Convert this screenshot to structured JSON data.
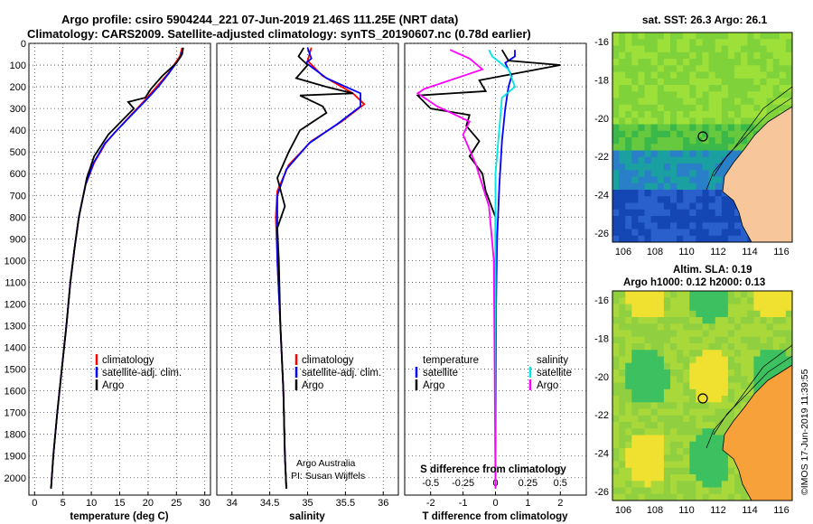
{
  "header": {
    "line1": "Argo profile: csiro 5904244_221 07-Jun-2019 21.46S 111.25E (NRT data)",
    "line2": "Climatology: CARS2009. Satellite-adjusted climatology: synTS_20190607.nc (0.78d earlier)"
  },
  "depth_ticks": [
    0,
    100,
    200,
    300,
    400,
    500,
    600,
    700,
    800,
    900,
    1000,
    1100,
    1200,
    1300,
    1400,
    1500,
    1600,
    1700,
    1800,
    1900,
    2000
  ],
  "panels": {
    "temperature": {
      "xlabel": "temperature (deg C)",
      "xticks": [
        0,
        5,
        10,
        15,
        20,
        25,
        30
      ],
      "legend": [
        "climatology",
        "satellite-adj. clim.",
        "Argo"
      ]
    },
    "salinity": {
      "xlabel": "salinity",
      "xticks": [
        "34",
        "34.5",
        "35",
        "35.5",
        "36"
      ],
      "legend": [
        "climatology",
        "satellite-adj. clim.",
        "Argo"
      ],
      "credit1": "Argo Australia",
      "credit2": "PI: Susan Wijffels"
    },
    "difference": {
      "xlabel": "T difference from climatology",
      "xticks": [
        "-2",
        "-1",
        "0",
        "1",
        "2"
      ],
      "top_label": "S difference from climatology",
      "sticks": [
        "-0.5",
        "-0.25",
        "0",
        "0.25",
        "0.5"
      ],
      "legend_left_title": "temperature",
      "legend_right_title": "salinity",
      "legend_left": [
        "satellite",
        "Argo"
      ],
      "legend_right": [
        "satellite",
        "Argo"
      ]
    }
  },
  "maps": {
    "sst": {
      "title": "sat. SST: 26.3 Argo: 26.1",
      "yticks": [
        "-16",
        "-18",
        "-20",
        "-22",
        "-24",
        "-26"
      ],
      "xticks": [
        "106",
        "108",
        "110",
        "112",
        "114",
        "116"
      ]
    },
    "sla": {
      "title1": "Altim. SLA: 0.19",
      "title2": "Argo h1000: 0.12 h2000: 0.13",
      "yticks": [
        "-16",
        "-18",
        "-20",
        "-22",
        "-24",
        "-26"
      ],
      "xticks": [
        "106",
        "108",
        "110",
        "112",
        "114",
        "116"
      ]
    },
    "footer": "©IMOS 17-Jun-2019 11:39:55"
  },
  "colors": {
    "climatology": "#ff0000",
    "satellite": "#0000ff",
    "argo": "#000000",
    "sat_salinity": "#00e5e5",
    "argo_salinity": "#ff00ff",
    "land": "#f7c79b"
  },
  "chart_data": [
    {
      "type": "line",
      "name": "temperature profile",
      "xlabel": "temperature (deg C)",
      "ylabel": "",
      "xlim": [
        -1,
        31
      ],
      "ylim": [
        2080,
        0
      ],
      "series": [
        {
          "name": "climatology",
          "points": [
            [
              26,
              20
            ],
            [
              25.6,
              60
            ],
            [
              24.8,
              90
            ],
            [
              23.5,
              140
            ],
            [
              21.5,
              200
            ],
            [
              19.5,
              260
            ],
            [
              17,
              330
            ],
            [
              14.5,
              400
            ],
            [
              12.5,
              460
            ],
            [
              10.5,
              550
            ],
            [
              9,
              650
            ],
            [
              7.8,
              800
            ],
            [
              7,
              950
            ],
            [
              6.3,
              1100
            ],
            [
              5.6,
              1300
            ],
            [
              4.8,
              1500
            ],
            [
              4,
              1700
            ],
            [
              3.3,
              1900
            ],
            [
              2.9,
              2050
            ]
          ]
        },
        {
          "name": "satellite-adj. clim.",
          "points": [
            [
              26.2,
              20
            ],
            [
              25.8,
              60
            ],
            [
              25,
              90
            ],
            [
              23.6,
              140
            ],
            [
              21.8,
              200
            ],
            [
              19.7,
              260
            ],
            [
              17.1,
              330
            ],
            [
              14.5,
              400
            ],
            [
              12.4,
              460
            ],
            [
              10.4,
              550
            ],
            [
              9,
              650
            ],
            [
              7.8,
              800
            ],
            [
              7,
              950
            ],
            [
              6.3,
              1100
            ],
            [
              5.6,
              1300
            ],
            [
              4.8,
              1500
            ],
            [
              4,
              1700
            ],
            [
              3.3,
              1900
            ],
            [
              2.9,
              2050
            ]
          ]
        },
        {
          "name": "Argo",
          "points": [
            [
              26.2,
              20
            ],
            [
              26,
              50
            ],
            [
              25,
              90
            ],
            [
              22.5,
              150
            ],
            [
              20.5,
              210
            ],
            [
              19.5,
              250
            ],
            [
              16.5,
              270
            ],
            [
              17.5,
              300
            ],
            [
              13,
              420
            ],
            [
              10.5,
              520
            ],
            [
              9.2,
              620
            ],
            [
              7.8,
              800
            ],
            [
              7,
              950
            ],
            [
              6.3,
              1100
            ],
            [
              5.6,
              1300
            ],
            [
              4.8,
              1500
            ],
            [
              4,
              1700
            ],
            [
              3.3,
              1900
            ],
            [
              2.9,
              2050
            ]
          ]
        }
      ]
    },
    {
      "type": "line",
      "name": "salinity profile",
      "xlabel": "salinity",
      "ylabel": "",
      "xlim": [
        33.8,
        36.2
      ],
      "ylim": [
        2080,
        0
      ],
      "series": [
        {
          "name": "climatology",
          "points": [
            [
              35.05,
              20
            ],
            [
              35.0,
              80
            ],
            [
              35.2,
              150
            ],
            [
              35.6,
              230
            ],
            [
              35.75,
              280
            ],
            [
              35.45,
              360
            ],
            [
              35.05,
              450
            ],
            [
              34.75,
              560
            ],
            [
              34.6,
              680
            ],
            [
              34.58,
              800
            ],
            [
              34.6,
              1000
            ],
            [
              34.64,
              1300
            ],
            [
              34.68,
              1600
            ],
            [
              34.7,
              1900
            ],
            [
              34.72,
              2050
            ]
          ]
        },
        {
          "name": "satellite-adj. clim.",
          "points": [
            [
              35.0,
              20
            ],
            [
              35.05,
              70
            ],
            [
              34.98,
              90
            ],
            [
              35.25,
              160
            ],
            [
              35.7,
              230
            ],
            [
              35.7,
              290
            ],
            [
              35.4,
              370
            ],
            [
              35.02,
              460
            ],
            [
              34.72,
              580
            ],
            [
              34.6,
              700
            ],
            [
              34.6,
              800
            ],
            [
              34.6,
              1000
            ],
            [
              34.64,
              1300
            ],
            [
              34.68,
              1600
            ],
            [
              34.7,
              1900
            ],
            [
              34.72,
              2050
            ]
          ]
        },
        {
          "name": "Argo",
          "points": [
            [
              34.95,
              20
            ],
            [
              34.88,
              60
            ],
            [
              35.0,
              100
            ],
            [
              34.85,
              160
            ],
            [
              35.25,
              200
            ],
            [
              35.6,
              230
            ],
            [
              34.9,
              240
            ],
            [
              35.2,
              290
            ],
            [
              35.25,
              320
            ],
            [
              34.9,
              400
            ],
            [
              34.75,
              500
            ],
            [
              34.6,
              620
            ],
            [
              34.7,
              750
            ],
            [
              34.6,
              850
            ],
            [
              34.62,
              1000
            ],
            [
              34.64,
              1300
            ],
            [
              34.68,
              1600
            ],
            [
              34.7,
              1900
            ],
            [
              34.72,
              2050
            ]
          ]
        }
      ]
    },
    {
      "type": "line",
      "name": "difference from climatology",
      "xlabel": "T difference from climatology",
      "ylabel": "",
      "xlim": [
        -2.8,
        2.8
      ],
      "ylim": [
        2080,
        0
      ],
      "series": [
        {
          "name": "temperature satellite",
          "points": [
            [
              0.6,
              30
            ],
            [
              0.6,
              60
            ],
            [
              0.3,
              90
            ],
            [
              0.5,
              150
            ],
            [
              0.4,
              200
            ],
            [
              0.3,
              300
            ],
            [
              0.2,
              450
            ],
            [
              0.12,
              650
            ],
            [
              0.05,
              900
            ],
            [
              0.02,
              1200
            ],
            [
              0.01,
              1600
            ],
            [
              0,
              2050
            ]
          ]
        },
        {
          "name": "temperature Argo",
          "points": [
            [
              0.2,
              30
            ],
            [
              0.4,
              80
            ],
            [
              2.0,
              100
            ],
            [
              -0.5,
              170
            ],
            [
              -0.3,
              220
            ],
            [
              -2.4,
              240
            ],
            [
              -2.0,
              300
            ],
            [
              -0.8,
              330
            ],
            [
              -0.9,
              380
            ],
            [
              -0.5,
              450
            ],
            [
              -0.8,
              520
            ],
            [
              -0.4,
              600
            ],
            [
              -0.3,
              680
            ],
            [
              0.0,
              800
            ],
            [
              0.0,
              1200
            ],
            [
              0.0,
              2050
            ]
          ]
        },
        {
          "name": "salinity satellite",
          "points": [
            [
              -0.2,
              30
            ],
            [
              -0.1,
              60
            ],
            [
              0.4,
              120
            ],
            [
              0.6,
              200
            ],
            [
              0.2,
              250
            ],
            [
              0.0,
              600
            ],
            [
              0.0,
              2050
            ]
          ]
        },
        {
          "name": "salinity Argo",
          "points": [
            [
              -1.4,
              30
            ],
            [
              -0.8,
              70
            ],
            [
              -0.4,
              120
            ],
            [
              -2.2,
              210
            ],
            [
              -2.4,
              230
            ],
            [
              -1.8,
              290
            ],
            [
              -0.8,
              360
            ],
            [
              -1.0,
              420
            ],
            [
              -0.6,
              560
            ],
            [
              -0.2,
              750
            ],
            [
              -0.05,
              1000
            ],
            [
              0.0,
              2050
            ]
          ]
        }
      ]
    }
  ]
}
